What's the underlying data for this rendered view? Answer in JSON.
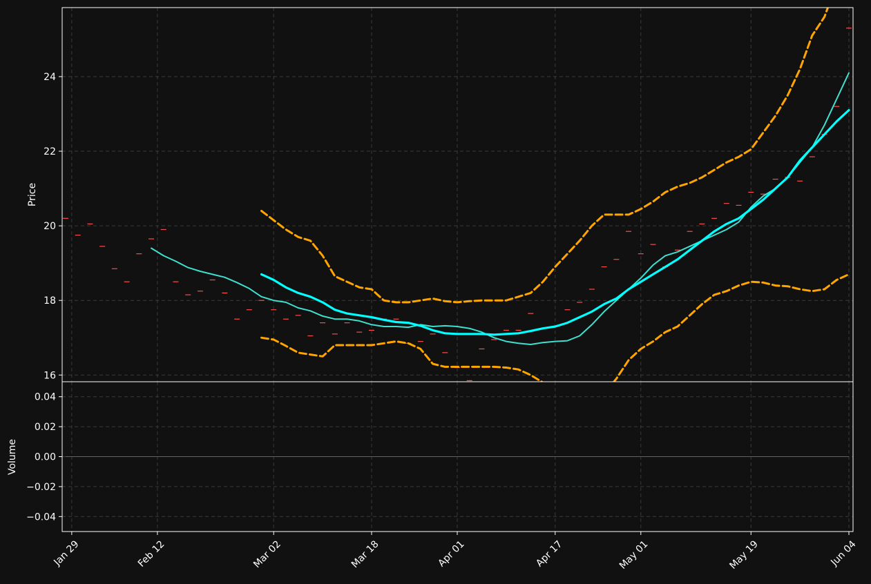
{
  "colors": {
    "background": "#111111",
    "axes": "#ffffff",
    "grid": "#3a3a3a",
    "candle": "#ff4d4d",
    "sma_fast": "#40e0d0",
    "sma_slow": "#00ffff",
    "bands": "#ffa500",
    "volume": "#1f77b4"
  },
  "chart_data": [
    {
      "type": "line",
      "panel": "price",
      "xlabel": "",
      "ylabel": "Price",
      "ylim": [
        15.82,
        25.85
      ],
      "yticks": [
        16,
        18,
        20,
        22,
        24
      ],
      "ytick_labels": [
        "16",
        "18",
        "20",
        "22",
        "24"
      ],
      "xticks": [
        "2024-01-29",
        "2024-02-12",
        "2024-03-02",
        "2024-03-18",
        "2024-04-01",
        "2024-04-17",
        "2024-05-01",
        "2024-05-19",
        "2024-06-04"
      ],
      "xtick_labels": [
        "Jan 29",
        "Feb 12",
        "Mar 02",
        "Mar 18",
        "Apr 01",
        "Apr 17",
        "May 01",
        "May 19",
        "Jun 04"
      ],
      "xlim": [
        "2024-01-28",
        "2024-06-04"
      ],
      "grid": true,
      "candles": {
        "x": [
          "2024-01-28",
          "2024-01-30",
          "2024-02-01",
          "2024-02-03",
          "2024-02-05",
          "2024-02-07",
          "2024-02-09",
          "2024-02-11",
          "2024-02-13",
          "2024-02-15",
          "2024-02-17",
          "2024-02-19",
          "2024-02-21",
          "2024-02-23",
          "2024-02-25",
          "2024-02-27",
          "2024-02-29",
          "2024-03-02",
          "2024-03-04",
          "2024-03-06",
          "2024-03-08",
          "2024-03-10",
          "2024-03-12",
          "2024-03-14",
          "2024-03-16",
          "2024-03-18",
          "2024-03-20",
          "2024-03-22",
          "2024-03-24",
          "2024-03-26",
          "2024-03-28",
          "2024-03-30",
          "2024-04-01",
          "2024-04-03",
          "2024-04-05",
          "2024-04-07",
          "2024-04-09",
          "2024-04-11",
          "2024-04-13",
          "2024-04-15",
          "2024-04-17",
          "2024-04-19",
          "2024-04-21",
          "2024-04-23",
          "2024-04-25",
          "2024-04-27",
          "2024-04-29",
          "2024-05-01",
          "2024-05-03",
          "2024-05-05",
          "2024-05-07",
          "2024-05-09",
          "2024-05-11",
          "2024-05-13",
          "2024-05-15",
          "2024-05-17",
          "2024-05-19",
          "2024-05-21",
          "2024-05-23",
          "2024-05-25",
          "2024-05-27",
          "2024-05-29",
          "2024-05-31",
          "2024-06-02",
          "2024-06-04"
        ],
        "close": [
          20.2,
          19.75,
          20.05,
          19.45,
          18.85,
          18.5,
          19.25,
          19.65,
          19.9,
          18.5,
          18.15,
          18.25,
          18.55,
          18.2,
          17.5,
          17.75,
          18.0,
          17.75,
          17.5,
          17.6,
          17.05,
          17.4,
          17.1,
          17.4,
          17.15,
          17.2,
          17.5,
          17.5,
          16.85,
          16.9,
          17.1,
          16.6,
          16.2,
          15.85,
          16.7,
          16.95,
          17.2,
          17.2,
          17.65,
          17.25,
          17.3,
          17.75,
          17.95,
          18.3,
          18.9,
          19.1,
          19.85,
          19.25,
          19.5,
          18.9,
          19.35,
          19.85,
          20.05,
          20.2,
          20.6,
          20.55,
          20.9,
          20.85,
          21.25,
          21.3,
          21.2,
          21.85,
          22.45,
          23.2,
          25.3
        ]
      },
      "series": [
        {
          "name": "",
          "style": "sma_fast",
          "x": [
            "2024-02-11",
            "2024-02-13",
            "2024-02-15",
            "2024-02-17",
            "2024-02-19",
            "2024-02-21",
            "2024-02-23",
            "2024-02-25",
            "2024-02-27",
            "2024-02-29",
            "2024-03-02",
            "2024-03-04",
            "2024-03-06",
            "2024-03-08",
            "2024-03-10",
            "2024-03-12",
            "2024-03-14",
            "2024-03-16",
            "2024-03-18",
            "2024-03-20",
            "2024-03-22",
            "2024-03-24",
            "2024-03-26",
            "2024-03-28",
            "2024-03-30",
            "2024-04-01",
            "2024-04-03",
            "2024-04-05",
            "2024-04-07",
            "2024-04-09",
            "2024-04-11",
            "2024-04-13",
            "2024-04-15",
            "2024-04-17",
            "2024-04-19",
            "2024-04-21",
            "2024-04-23",
            "2024-04-25",
            "2024-04-27",
            "2024-04-29",
            "2024-05-01",
            "2024-05-03",
            "2024-05-05",
            "2024-05-07",
            "2024-05-09",
            "2024-05-11",
            "2024-05-13",
            "2024-05-15",
            "2024-05-17",
            "2024-05-19",
            "2024-05-21",
            "2024-05-23",
            "2024-05-25",
            "2024-05-27",
            "2024-05-29",
            "2024-05-31",
            "2024-06-02",
            "2024-06-04"
          ],
          "values": [
            19.4,
            19.2,
            19.05,
            18.88,
            18.78,
            18.7,
            18.62,
            18.48,
            18.32,
            18.1,
            18.0,
            17.95,
            17.8,
            17.72,
            17.58,
            17.5,
            17.5,
            17.45,
            17.35,
            17.3,
            17.3,
            17.28,
            17.35,
            17.3,
            17.32,
            17.3,
            17.25,
            17.15,
            17.0,
            16.9,
            16.85,
            16.82,
            16.87,
            16.9,
            16.92,
            17.05,
            17.35,
            17.7,
            18.0,
            18.3,
            18.6,
            18.95,
            19.2,
            19.3,
            19.45,
            19.6,
            19.75,
            19.9,
            20.1,
            20.5,
            20.8,
            21.0,
            21.3,
            21.7,
            22.1,
            22.7,
            23.4,
            24.1
          ]
        },
        {
          "name": "",
          "style": "sma_slow",
          "x": [
            "2024-02-29",
            "2024-03-02",
            "2024-03-04",
            "2024-03-06",
            "2024-03-08",
            "2024-03-10",
            "2024-03-12",
            "2024-03-14",
            "2024-03-16",
            "2024-03-18",
            "2024-03-20",
            "2024-03-22",
            "2024-03-24",
            "2024-03-26",
            "2024-03-28",
            "2024-03-30",
            "2024-04-01",
            "2024-04-03",
            "2024-04-05",
            "2024-04-07",
            "2024-04-09",
            "2024-04-11",
            "2024-04-13",
            "2024-04-15",
            "2024-04-17",
            "2024-04-19",
            "2024-04-21",
            "2024-04-23",
            "2024-04-25",
            "2024-04-27",
            "2024-04-29",
            "2024-05-01",
            "2024-05-03",
            "2024-05-05",
            "2024-05-07",
            "2024-05-09",
            "2024-05-11",
            "2024-05-13",
            "2024-05-15",
            "2024-05-17",
            "2024-05-19",
            "2024-05-21",
            "2024-05-23",
            "2024-05-25",
            "2024-05-27",
            "2024-05-29",
            "2024-05-31",
            "2024-06-02",
            "2024-06-04"
          ],
          "values": [
            18.7,
            18.55,
            18.35,
            18.2,
            18.1,
            17.95,
            17.75,
            17.65,
            17.6,
            17.55,
            17.48,
            17.42,
            17.4,
            17.32,
            17.2,
            17.12,
            17.1,
            17.1,
            17.1,
            17.08,
            17.1,
            17.12,
            17.18,
            17.25,
            17.3,
            17.4,
            17.55,
            17.7,
            17.9,
            18.05,
            18.3,
            18.5,
            18.7,
            18.9,
            19.1,
            19.35,
            19.6,
            19.85,
            20.05,
            20.2,
            20.45,
            20.7,
            21.0,
            21.3,
            21.75,
            22.1,
            22.45,
            22.8,
            23.1
          ]
        },
        {
          "name": "",
          "style": "band_upper",
          "x": [
            "2024-02-29",
            "2024-03-02",
            "2024-03-04",
            "2024-03-06",
            "2024-03-08",
            "2024-03-10",
            "2024-03-12",
            "2024-03-14",
            "2024-03-16",
            "2024-03-18",
            "2024-03-20",
            "2024-03-22",
            "2024-03-24",
            "2024-03-26",
            "2024-03-28",
            "2024-03-30",
            "2024-04-01",
            "2024-04-03",
            "2024-04-05",
            "2024-04-07",
            "2024-04-09",
            "2024-04-11",
            "2024-04-13",
            "2024-04-15",
            "2024-04-17",
            "2024-04-19",
            "2024-04-21",
            "2024-04-23",
            "2024-04-25",
            "2024-04-27",
            "2024-04-29",
            "2024-05-01",
            "2024-05-03",
            "2024-05-05",
            "2024-05-07",
            "2024-05-09",
            "2024-05-11",
            "2024-05-13",
            "2024-05-15",
            "2024-05-17",
            "2024-05-19",
            "2024-05-21",
            "2024-05-23",
            "2024-05-25",
            "2024-05-27",
            "2024-05-29",
            "2024-05-31",
            "2024-06-02",
            "2024-06-04"
          ],
          "values": [
            20.4,
            20.15,
            19.9,
            19.7,
            19.6,
            19.2,
            18.65,
            18.5,
            18.35,
            18.3,
            18.0,
            17.95,
            17.95,
            18.0,
            18.05,
            17.98,
            17.95,
            17.98,
            18.0,
            18.0,
            18.0,
            18.1,
            18.2,
            18.5,
            18.9,
            19.25,
            19.6,
            20.0,
            20.3,
            20.3,
            20.3,
            20.45,
            20.65,
            20.9,
            21.05,
            21.15,
            21.3,
            21.5,
            21.7,
            21.85,
            22.05,
            22.5,
            22.95,
            23.5,
            24.2,
            25.1,
            25.6,
            26.5,
            27.0
          ]
        },
        {
          "name": "",
          "style": "band_lower",
          "x": [
            "2024-02-29",
            "2024-03-02",
            "2024-03-04",
            "2024-03-06",
            "2024-03-08",
            "2024-03-10",
            "2024-03-12",
            "2024-03-14",
            "2024-03-16",
            "2024-03-18",
            "2024-03-20",
            "2024-03-22",
            "2024-03-24",
            "2024-03-26",
            "2024-03-28",
            "2024-03-30",
            "2024-04-01",
            "2024-04-03",
            "2024-04-05",
            "2024-04-07",
            "2024-04-09",
            "2024-04-11",
            "2024-04-13",
            "2024-04-15",
            "2024-04-17",
            "2024-04-19",
            "2024-04-21",
            "2024-04-23",
            "2024-04-25",
            "2024-04-27",
            "2024-04-29",
            "2024-05-01",
            "2024-05-03",
            "2024-05-05",
            "2024-05-07",
            "2024-05-09",
            "2024-05-11",
            "2024-05-13",
            "2024-05-15",
            "2024-05-17",
            "2024-05-19",
            "2024-05-21",
            "2024-05-23",
            "2024-05-25",
            "2024-05-27",
            "2024-05-29",
            "2024-05-31",
            "2024-06-02",
            "2024-06-04"
          ],
          "values": [
            17.0,
            16.95,
            16.78,
            16.6,
            16.55,
            16.5,
            16.8,
            16.8,
            16.8,
            16.8,
            16.85,
            16.9,
            16.85,
            16.7,
            16.3,
            16.22,
            16.22,
            16.22,
            16.22,
            16.22,
            16.2,
            16.15,
            16.0,
            15.8,
            15.6,
            15.45,
            15.35,
            15.3,
            15.5,
            15.9,
            16.4,
            16.7,
            16.9,
            17.15,
            17.3,
            17.6,
            17.9,
            18.15,
            18.25,
            18.4,
            18.5,
            18.48,
            18.4,
            18.38,
            18.3,
            18.25,
            18.3,
            18.55,
            18.7
          ]
        }
      ]
    },
    {
      "type": "line",
      "panel": "volume",
      "xlabel": "",
      "ylabel": "Volume",
      "ylim": [
        -0.05,
        0.05
      ],
      "yticks": [
        0.04,
        0.02,
        0.0,
        -0.02,
        -0.04
      ],
      "ytick_labels": [
        "0.04",
        "0.02",
        "0.00",
        "−0.02",
        "−0.04"
      ],
      "grid": true,
      "series": [
        {
          "name": "",
          "x": [
            "2024-01-28",
            "2024-06-04"
          ],
          "values": [
            0,
            0
          ]
        }
      ]
    }
  ]
}
